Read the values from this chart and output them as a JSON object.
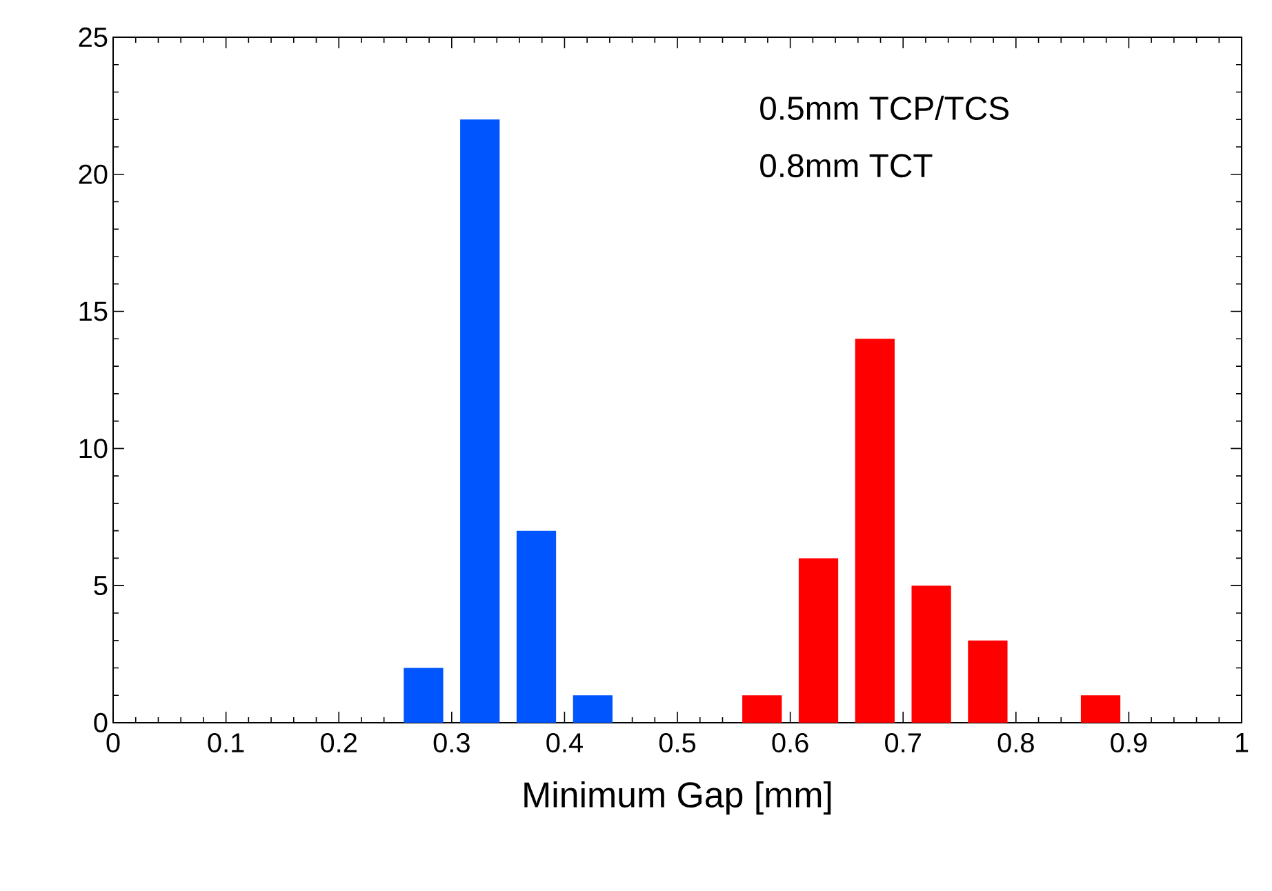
{
  "chart_data": {
    "type": "bar",
    "xlabel": "Minimum Gap [mm]",
    "series": [
      {
        "color": "#0055ff",
        "x": [
          0.275,
          0.325,
          0.375,
          0.425
        ],
        "values": [
          2,
          22,
          7,
          1
        ]
      },
      {
        "color": "#ff0000",
        "x": [
          0.575,
          0.625,
          0.675,
          0.725,
          0.775,
          0.875
        ],
        "values": [
          1,
          6,
          14,
          5,
          3,
          1
        ]
      }
    ],
    "xlim": [
      0,
      1
    ],
    "ylim": [
      0,
      25
    ],
    "xticks": [
      0,
      0.1,
      0.2,
      0.3,
      0.4,
      0.5,
      0.6,
      0.7,
      0.8,
      0.9,
      1
    ],
    "yticks": [
      0,
      5,
      10,
      15,
      20,
      25
    ],
    "annotations": [
      "0.5mm TCP/TCS",
      "0.8mm TCT"
    ]
  }
}
